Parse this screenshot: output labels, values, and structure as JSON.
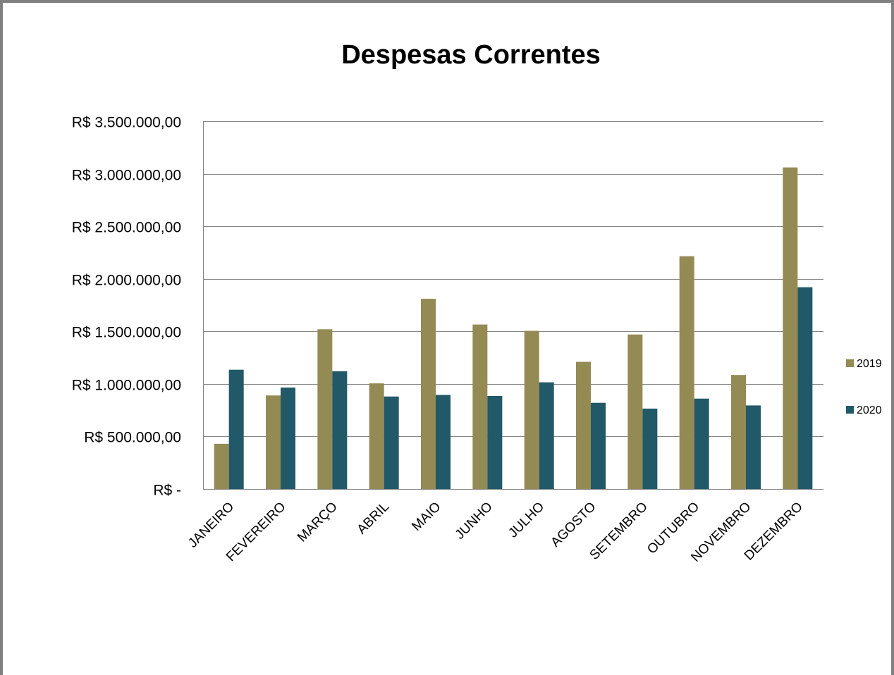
{
  "chart_data": {
    "type": "bar",
    "title": "Despesas Correntes",
    "xlabel": "",
    "ylabel": "",
    "categories": [
      "JANEIRO",
      "FEVEREIRO",
      "MARÇO",
      "ABRIL",
      "MAIO",
      "JUNHO",
      "JULHO",
      "AGOSTO",
      "SETEMBRO",
      "OUTUBRO",
      "NOVEMBRO",
      "DEZEMBRO"
    ],
    "series": [
      {
        "name": "2019",
        "color": "#948a54",
        "values": [
          430000,
          890000,
          1520000,
          1005000,
          1810000,
          1565000,
          1505000,
          1210000,
          1470000,
          2215000,
          1085000,
          3060000
        ]
      },
      {
        "name": "2020",
        "color": "#215968",
        "values": [
          1135000,
          965000,
          1120000,
          880000,
          895000,
          885000,
          1015000,
          820000,
          765000,
          860000,
          795000,
          1920000
        ]
      }
    ],
    "ylim": [
      0,
      3500000
    ],
    "yticks": [
      0,
      500000,
      1000000,
      1500000,
      2000000,
      2500000,
      3000000,
      3500000
    ],
    "ytick_labels": [
      "R$ -",
      "R$ 500.000,00",
      "R$ 1.000.000,00",
      "R$ 1.500.000,00",
      "R$ 2.000.000,00",
      "R$ 2.500.000,00",
      "R$ 3.000.000,00",
      "R$ 3.500.000,00"
    ],
    "grid": true,
    "legend_position": "right",
    "gridline_color": "#868686"
  }
}
